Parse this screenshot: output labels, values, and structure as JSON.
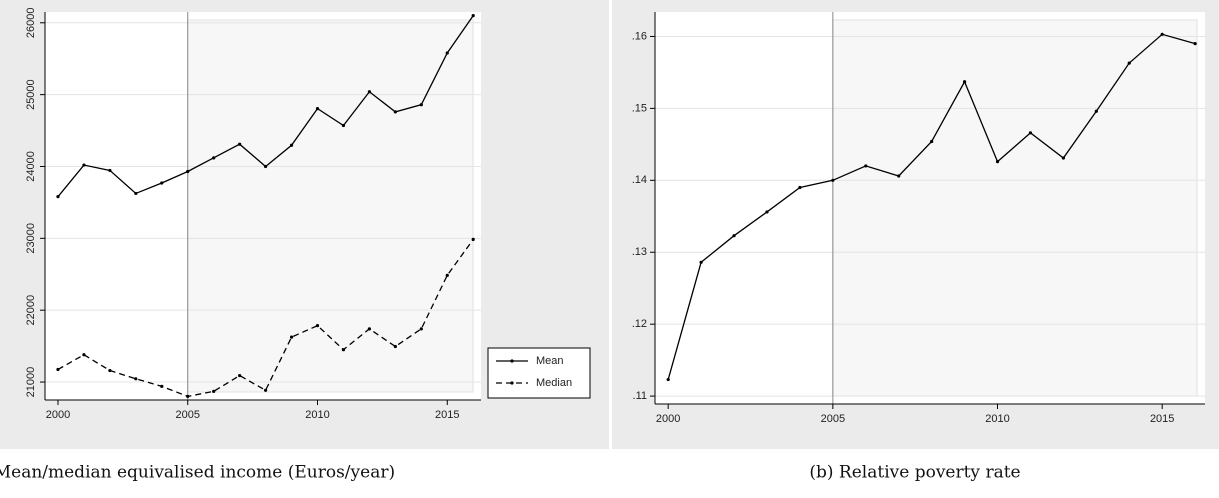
{
  "chart_data": [
    {
      "type": "line",
      "caption": "(a) Mean/median equivalised income (Euros/year)",
      "x": [
        2000,
        2001,
        2002,
        2003,
        2004,
        2005,
        2006,
        2007,
        2008,
        2009,
        2010,
        2011,
        2012,
        2013,
        2014,
        2015,
        2016
      ],
      "series": [
        {
          "name": "Mean",
          "color": "#000000",
          "dash": "solid",
          "values": [
            23580,
            24020,
            23945,
            23625,
            23770,
            23930,
            24120,
            24310,
            24000,
            24295,
            24805,
            24570,
            25040,
            24760,
            24860,
            25580,
            26100
          ]
        },
        {
          "name": "Median",
          "color": "#000000",
          "dash": "dashed",
          "values": [
            21175,
            21380,
            21160,
            21045,
            20940,
            20800,
            20870,
            21090,
            20885,
            21625,
            21785,
            21450,
            21740,
            21495,
            21740,
            22485,
            22985
          ]
        }
      ],
      "xlim": [
        1999.5,
        2016.3
      ],
      "xticks": [
        2000,
        2005,
        2010,
        2015
      ],
      "ylim": [
        20750,
        26150
      ],
      "yticks": [
        21000,
        22000,
        23000,
        24000,
        25000,
        26000
      ],
      "vline": 2005,
      "grid": true,
      "legend": "bottom-right"
    },
    {
      "type": "line",
      "caption": "(b) Relative poverty rate",
      "x": [
        2000,
        2001,
        2002,
        2003,
        2004,
        2005,
        2006,
        2007,
        2008,
        2009,
        2010,
        2011,
        2012,
        2013,
        2014,
        2015,
        2016
      ],
      "series": [
        {
          "color": "#000000",
          "dash": "solid",
          "values": [
            0.1123,
            0.1286,
            0.1323,
            0.1356,
            0.139,
            0.14,
            0.142,
            0.1406,
            0.1454,
            0.1537,
            0.1426,
            0.1466,
            0.1431,
            0.1496,
            0.1563,
            0.1603,
            0.159
          ]
        }
      ],
      "xlim": [
        1999.6,
        2016.3
      ],
      "xticks": [
        2000,
        2005,
        2010,
        2015
      ],
      "ylim": [
        0.1089,
        0.1634
      ],
      "yticks": [
        {
          "value": 0.11,
          "label": ".11"
        },
        {
          "value": 0.12,
          "label": ".12"
        },
        {
          "value": 0.13,
          "label": ".13"
        },
        {
          "value": 0.14,
          "label": ".14"
        },
        {
          "value": 0.15,
          "label": ".15"
        },
        {
          "value": 0.16,
          "label": ".16"
        }
      ],
      "vline": 2005,
      "grid": true
    }
  ]
}
